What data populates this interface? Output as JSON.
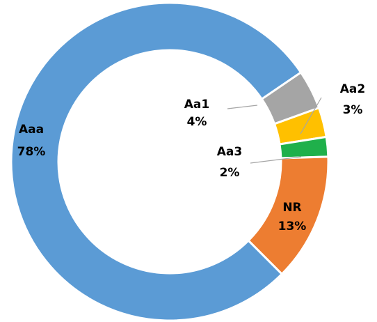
{
  "chart_data": {
    "type": "donut",
    "categories": [
      "Aa1",
      "Aa2",
      "Aa3",
      "NR",
      "Aaa"
    ],
    "values": [
      4,
      3,
      2,
      13,
      78
    ],
    "value_labels": [
      "4%",
      "3%",
      "2%",
      "13%",
      "78%"
    ],
    "colors": [
      "#a5a5a5",
      "#ffc000",
      "#1fb04b",
      "#ed7d31",
      "#5b9bd5"
    ]
  }
}
